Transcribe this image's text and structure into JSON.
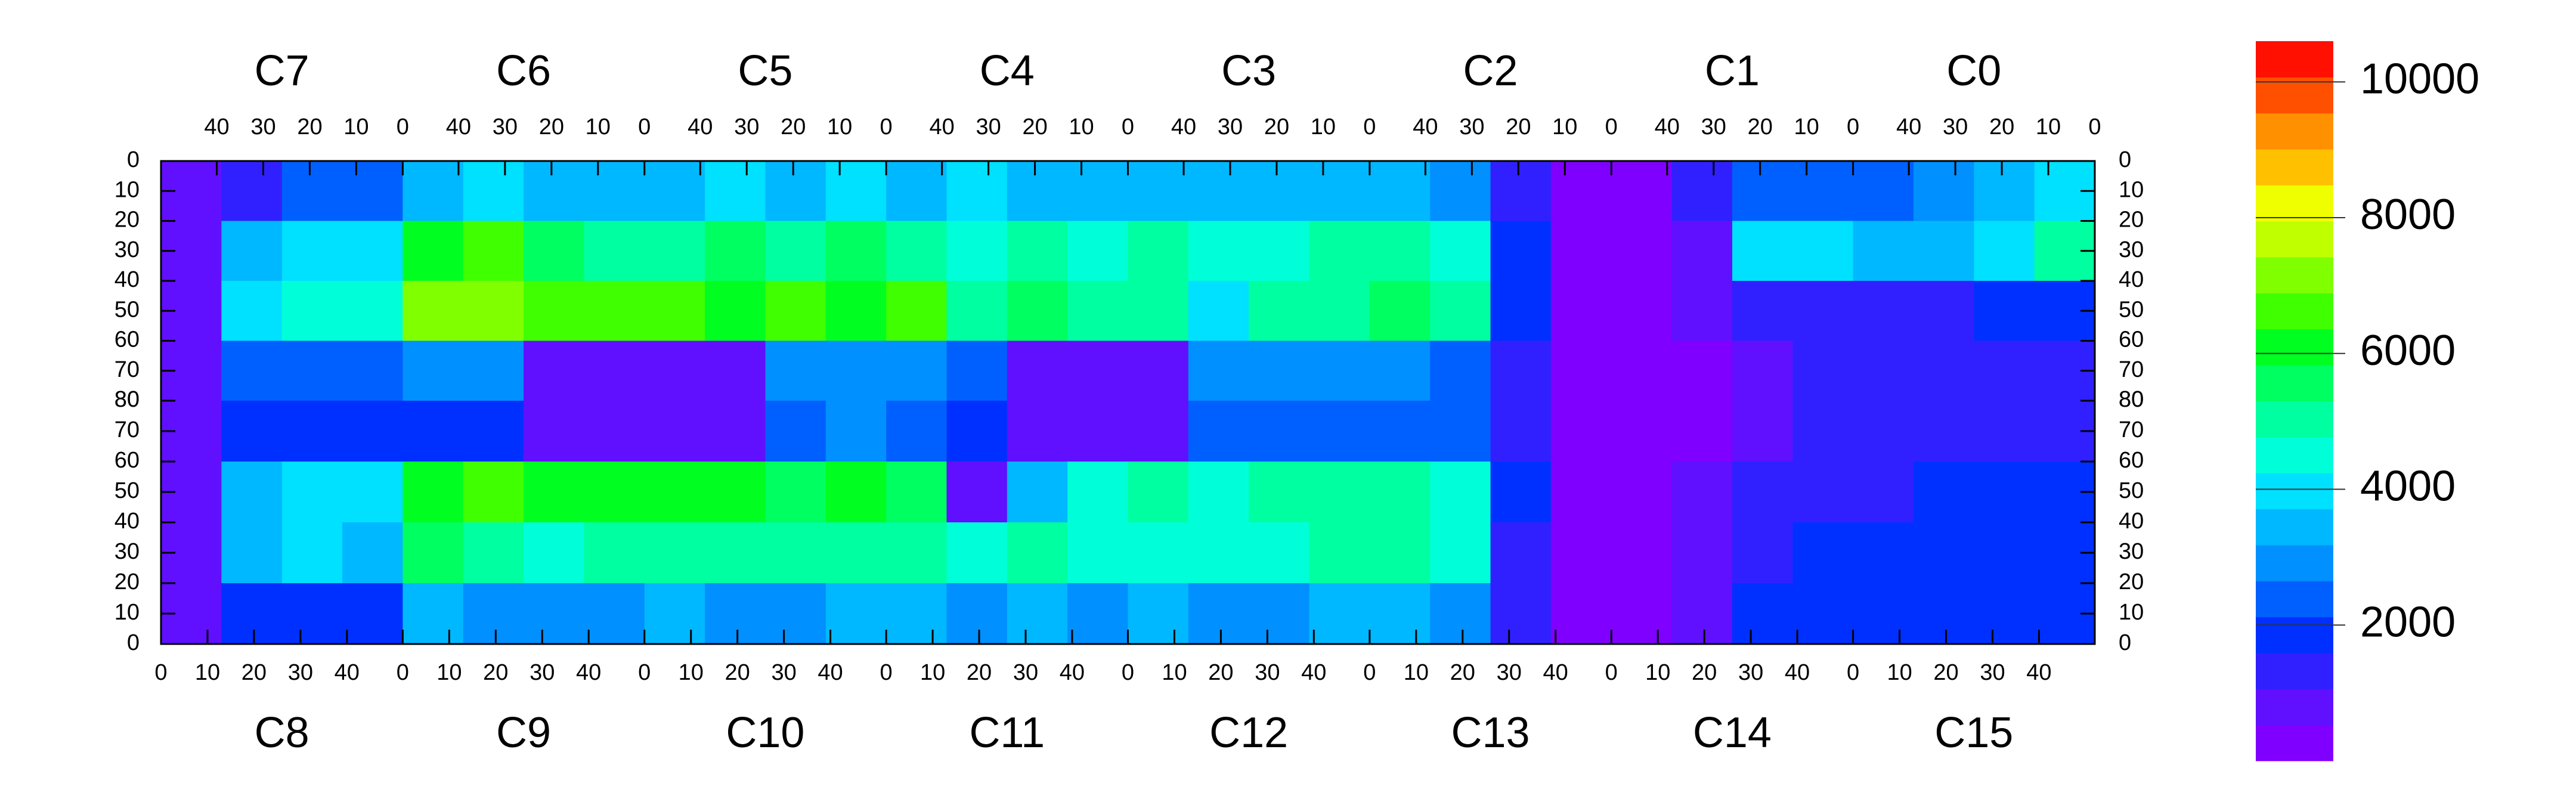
{
  "chart_data": {
    "type": "heatmap",
    "top_labels": [
      "C7",
      "C6",
      "C5",
      "C4",
      "C3",
      "C2",
      "C1",
      "C0"
    ],
    "bottom_labels": [
      "C8",
      "C9",
      "C10",
      "C11",
      "C12",
      "C13",
      "C14",
      "C15"
    ],
    "xlim": [
      0,
      52
    ],
    "top_xticks": [
      40,
      30,
      20,
      10,
      0
    ],
    "bottom_xticks": [
      0,
      10,
      20,
      30,
      40
    ],
    "ylim": [
      0,
      80
    ],
    "yticks": [
      0,
      10,
      20,
      30,
      40,
      50,
      60,
      70,
      80
    ],
    "zlim": [
      0,
      10600
    ],
    "zticks": [
      2000,
      4000,
      6000,
      8000,
      10000
    ],
    "colors": [
      "#8000ff",
      "#6010ff",
      "#3020ff",
      "#0030ff",
      "#0060ff",
      "#0090ff",
      "#00b8ff",
      "#00e0ff",
      "#00ffd8",
      "#00ffa0",
      "#00ff60",
      "#00ff20",
      "#40ff00",
      "#80ff00",
      "#c0ff00",
      "#f0ff00",
      "#ffc000",
      "#ff9000",
      "#ff5000",
      "#ff1000"
    ],
    "z": [
      [
        600,
        1500,
        2500,
        2500,
        3500,
        4000,
        3500,
        3500,
        3500,
        4000,
        3500,
        4000,
        3500,
        4000,
        3500,
        3500,
        3500,
        3500,
        3500,
        3500,
        3500,
        3000,
        1500,
        500,
        500,
        1500,
        2500,
        2500,
        2500,
        3000,
        3500,
        4000
      ],
      [
        800,
        3500,
        4000,
        4000,
        6000,
        6500,
        5500,
        5000,
        5000,
        5500,
        5000,
        5500,
        5000,
        4500,
        5000,
        4500,
        5000,
        4500,
        4500,
        5000,
        5000,
        4500,
        2000,
        500,
        500,
        800,
        4000,
        4000,
        3500,
        3500,
        4000,
        5000
      ],
      [
        800,
        4000,
        4500,
        4500,
        7000,
        7000,
        6500,
        6500,
        6500,
        6000,
        6500,
        6000,
        6500,
        5000,
        5500,
        5000,
        5000,
        4000,
        5000,
        5000,
        5500,
        5000,
        2000,
        500,
        500,
        600,
        1200,
        1500,
        1500,
        1500,
        1800,
        2000
      ],
      [
        800,
        2500,
        2500,
        2500,
        3000,
        3000,
        600,
        600,
        600,
        600,
        2800,
        3000,
        3000,
        2500,
        1000,
        800,
        800,
        3000,
        3000,
        3000,
        3000,
        2500,
        1500,
        500,
        500,
        500,
        1000,
        1200,
        1200,
        1500,
        1500,
        1500
      ],
      [
        800,
        2000,
        2000,
        2000,
        2000,
        2000,
        600,
        600,
        600,
        600,
        2500,
        3000,
        2500,
        2000,
        800,
        800,
        800,
        2500,
        2500,
        2500,
        2500,
        2500,
        1500,
        500,
        500,
        500,
        1000,
        1200,
        1200,
        1500,
        1500,
        1500
      ],
      [
        1000,
        3500,
        4000,
        4000,
        6000,
        6500,
        6000,
        6000,
        6000,
        6000,
        5500,
        6000,
        5500,
        1000,
        3500,
        4500,
        5000,
        4500,
        5000,
        5000,
        5000,
        4500,
        1800,
        500,
        500,
        800,
        1500,
        1500,
        1500,
        1800,
        1800,
        1800
      ],
      [
        1000,
        3500,
        4000,
        3500,
        5500,
        5000,
        4500,
        5000,
        5000,
        5000,
        5000,
        5000,
        5000,
        4500,
        5000,
        4500,
        4500,
        4500,
        4500,
        5000,
        5000,
        4500,
        1500,
        500,
        500,
        800,
        1500,
        1800,
        1800,
        2000,
        2000,
        2000
      ],
      [
        800,
        2000,
        2000,
        2000,
        3500,
        3000,
        3000,
        3000,
        3500,
        3000,
        3000,
        3500,
        3500,
        3000,
        3500,
        3000,
        3500,
        3000,
        3000,
        3500,
        3500,
        3000,
        1500,
        500,
        500,
        1000,
        2000,
        2000,
        1800,
        2000,
        2000,
        1800
      ]
    ]
  }
}
